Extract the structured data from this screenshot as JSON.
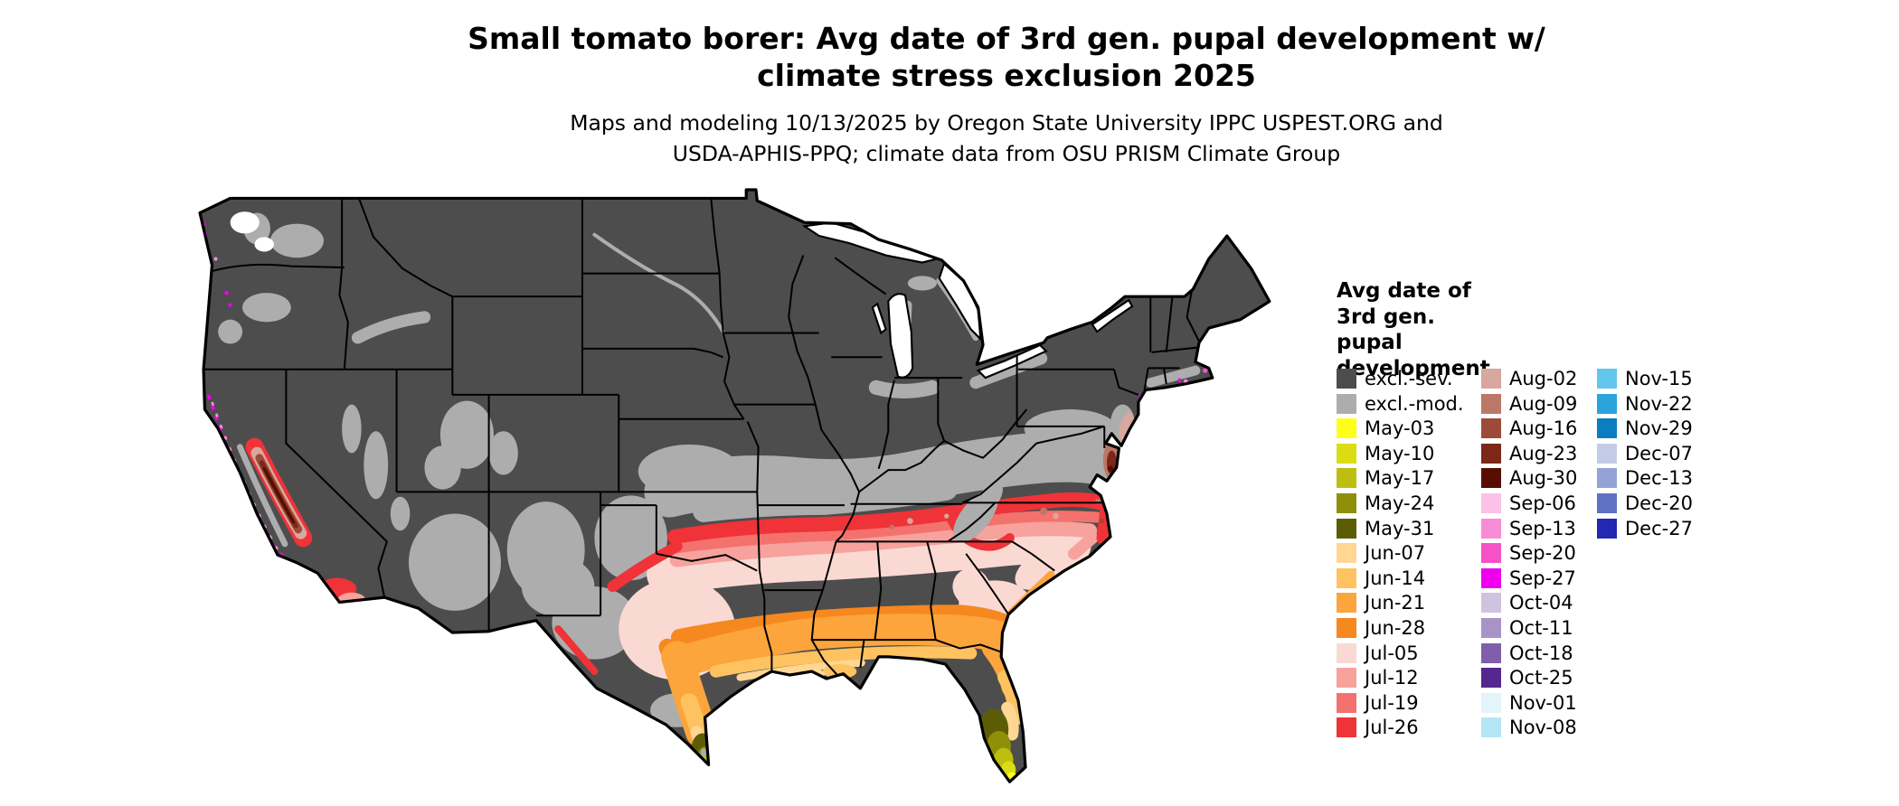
{
  "header": {
    "title_line1": "Small tomato borer: Avg date of 3rd gen. pupal development w/",
    "title_line2": "climate stress exclusion 2025",
    "subtitle_line1": "Maps and modeling 10/13/2025 by Oregon State University IPPC USPEST.ORG and",
    "subtitle_line2": "USDA-APHIS-PPQ; climate data from OSU PRISM Climate Group"
  },
  "legend": {
    "title": "Avg date of 3rd gen. pupal development",
    "columns": [
      [
        {
          "label": "excl.-sev.",
          "color": "#4D4D4D"
        },
        {
          "label": "excl.-mod.",
          "color": "#ADADAD"
        },
        {
          "label": "May-03",
          "color": "#FFFF19"
        },
        {
          "label": "May-10",
          "color": "#DCDC14"
        },
        {
          "label": "May-17",
          "color": "#BEBE0F"
        },
        {
          "label": "May-24",
          "color": "#8F8F0A"
        },
        {
          "label": "May-31",
          "color": "#5C5C05"
        },
        {
          "label": "Jun-07",
          "color": "#FFD793"
        },
        {
          "label": "Jun-14",
          "color": "#FFC261"
        },
        {
          "label": "Jun-21",
          "color": "#FCA53C"
        },
        {
          "label": "Jun-28",
          "color": "#F5881F"
        },
        {
          "label": "Jul-05",
          "color": "#FBD9D3"
        },
        {
          "label": "Jul-12",
          "color": "#F7A29C"
        },
        {
          "label": "Jul-19",
          "color": "#F4726E"
        },
        {
          "label": "Jul-26",
          "color": "#EF3338"
        }
      ],
      [
        {
          "label": "Aug-02",
          "color": "#D8A79D"
        },
        {
          "label": "Aug-09",
          "color": "#BC7767"
        },
        {
          "label": "Aug-16",
          "color": "#9E4A38"
        },
        {
          "label": "Aug-23",
          "color": "#7C2718"
        },
        {
          "label": "Aug-30",
          "color": "#570E00"
        },
        {
          "label": "Sep-06",
          "color": "#FBC2E7"
        },
        {
          "label": "Sep-13",
          "color": "#F98CD7"
        },
        {
          "label": "Sep-20",
          "color": "#F651C9"
        },
        {
          "label": "Sep-27",
          "color": "#EE00EE"
        },
        {
          "label": "Oct-04",
          "color": "#CFC3DF"
        },
        {
          "label": "Oct-11",
          "color": "#A893C7"
        },
        {
          "label": "Oct-18",
          "color": "#7F5FAC"
        },
        {
          "label": "Oct-25",
          "color": "#54288E"
        },
        {
          "label": "Nov-01",
          "color": "#E3F4FB"
        },
        {
          "label": "Nov-08",
          "color": "#B5E6F6"
        }
      ],
      [
        {
          "label": "Nov-15",
          "color": "#63C6EC"
        },
        {
          "label": "Nov-22",
          "color": "#2BA3DC"
        },
        {
          "label": "Nov-29",
          "color": "#0C7EC0"
        },
        {
          "label": "Dec-07",
          "color": "#C3CCE6"
        },
        {
          "label": "Dec-13",
          "color": "#93A3D6"
        },
        {
          "label": "Dec-20",
          "color": "#5F72C3"
        },
        {
          "label": "Dec-27",
          "color": "#2228B2"
        }
      ]
    ]
  }
}
